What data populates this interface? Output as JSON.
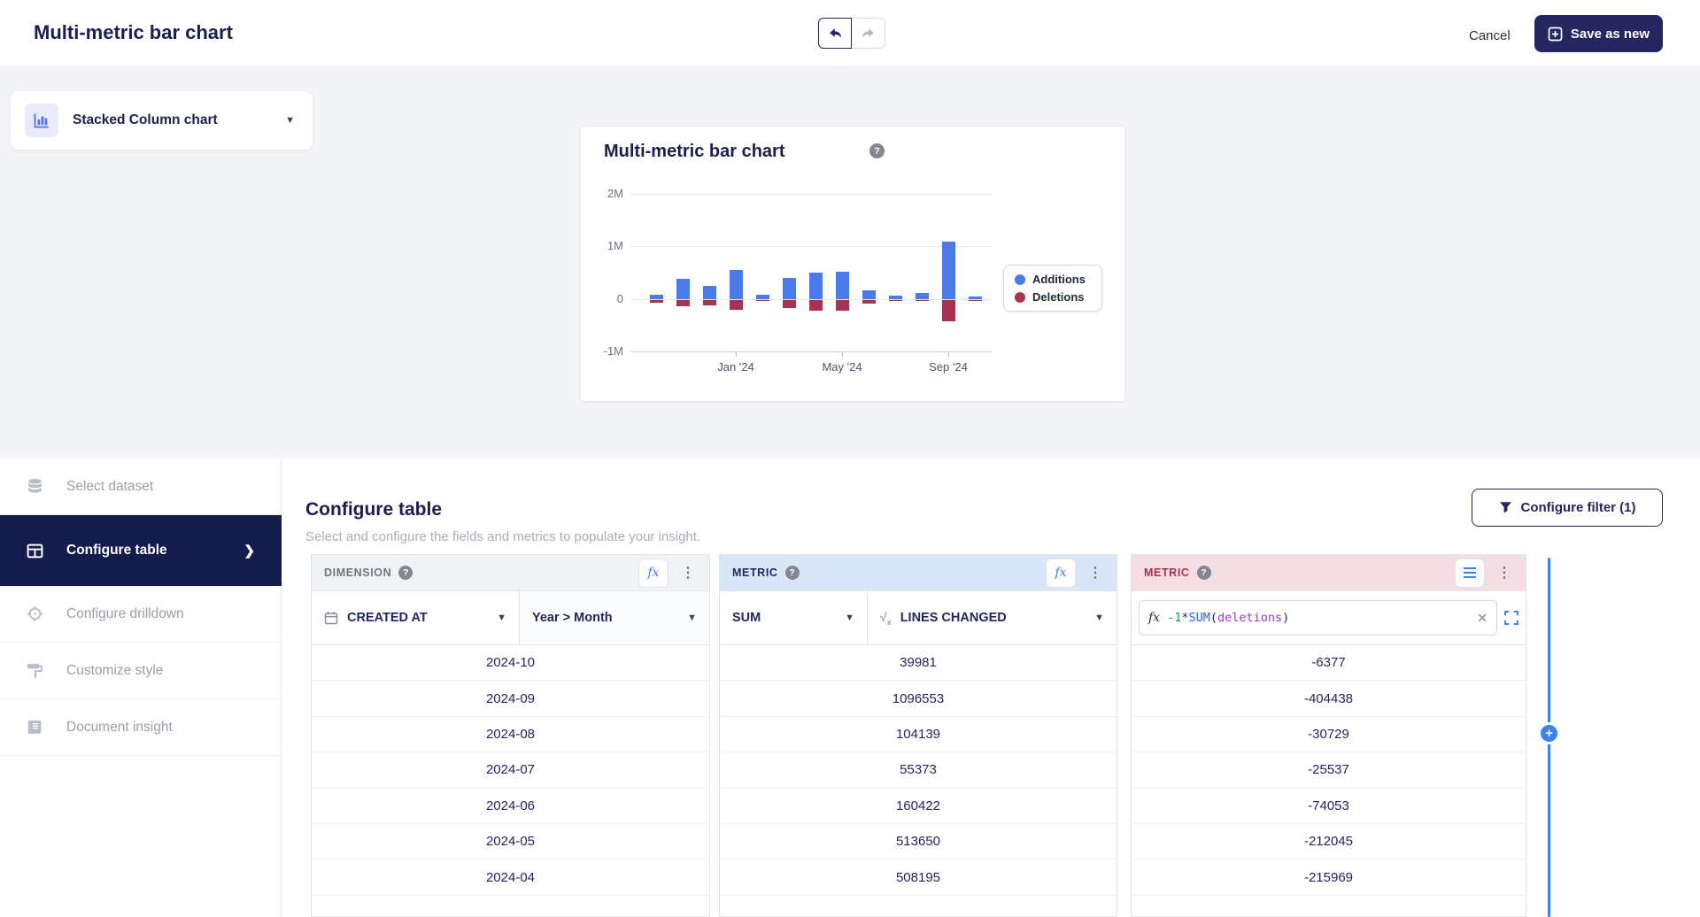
{
  "header": {
    "title": "Multi-metric bar chart",
    "cancel_label": "Cancel",
    "save_label": "Save as new"
  },
  "chart_type_selector": {
    "label": "Stacked Column chart"
  },
  "chart_card": {
    "title": "Multi-metric bar chart"
  },
  "chart_data": {
    "type": "bar",
    "stacked": true,
    "categories": [
      "2023-10",
      "2023-11",
      "2023-12",
      "2024-01",
      "2024-02",
      "2024-03",
      "2024-04",
      "2024-05",
      "2024-06",
      "2024-07",
      "2024-08",
      "2024-09",
      "2024-10"
    ],
    "series": [
      {
        "name": "Additions",
        "color": "#4b7be8",
        "values": [
          80000,
          380000,
          250000,
          550000,
          80000,
          400000,
          508195,
          513650,
          160422,
          55373,
          104139,
          1096553,
          39981
        ]
      },
      {
        "name": "Deletions",
        "color": "#a63450",
        "values": [
          -50000,
          -120000,
          -100000,
          -185000,
          -15000,
          -160000,
          -215969,
          -212045,
          -74053,
          -25537,
          -30729,
          -404438,
          -6377
        ]
      }
    ],
    "title": "Multi-metric bar chart",
    "xlabel": "",
    "ylabel": "",
    "ylim": [
      -1000000,
      2000000
    ],
    "y_ticks": [
      {
        "label": "2M",
        "value": 2000000
      },
      {
        "label": "1M",
        "value": 1000000
      },
      {
        "label": "0",
        "value": 0
      },
      {
        "label": "-1M",
        "value": -1000000
      }
    ],
    "x_tick_labels": [
      {
        "index": 3,
        "label": "Jan '24"
      },
      {
        "index": 7,
        "label": "May '24"
      },
      {
        "index": 11,
        "label": "Sep '24"
      }
    ],
    "grid": true,
    "legend_position": "right"
  },
  "sidebar": {
    "items": [
      {
        "label": "Select dataset",
        "icon": "database-icon",
        "active": false
      },
      {
        "label": "Configure table",
        "icon": "table-icon",
        "active": true
      },
      {
        "label": "Configure drilldown",
        "icon": "drilldown-icon",
        "active": false
      },
      {
        "label": "Customize style",
        "icon": "style-icon",
        "active": false
      },
      {
        "label": "Document insight",
        "icon": "document-icon",
        "active": false
      }
    ]
  },
  "configure": {
    "title": "Configure table",
    "subtitle": "Select and configure the fields and metrics to populate your insight.",
    "filter_button": "Configure filter (1)"
  },
  "columns": {
    "dimension": {
      "header": "DIMENSION",
      "field": "CREATED AT",
      "level": "Year > Month"
    },
    "metric1": {
      "header": "METRIC",
      "aggregation": "SUM",
      "field": "LINES CHANGED"
    },
    "metric2": {
      "header": "METRIC",
      "formula_prefix": "fx",
      "formula_parts": [
        {
          "text": "-1",
          "color": "#18a058"
        },
        {
          "text": "*",
          "color": "#1f2937"
        },
        {
          "text": "SUM",
          "color": "#2563eb"
        },
        {
          "text": "(",
          "color": "#1f2937"
        },
        {
          "text": "deletions",
          "color": "#a333c8"
        },
        {
          "text": ")",
          "color": "#1f2937"
        }
      ]
    }
  },
  "table": {
    "rows": [
      {
        "month": "2024-10",
        "metric1": "39981",
        "metric2": "-6377"
      },
      {
        "month": "2024-09",
        "metric1": "1096553",
        "metric2": "-404438"
      },
      {
        "month": "2024-08",
        "metric1": "104139",
        "metric2": "-30729"
      },
      {
        "month": "2024-07",
        "metric1": "55373",
        "metric2": "-25537"
      },
      {
        "month": "2024-06",
        "metric1": "160422",
        "metric2": "-74053"
      },
      {
        "month": "2024-05",
        "metric1": "513650",
        "metric2": "-212045"
      },
      {
        "month": "2024-04",
        "metric1": "508195",
        "metric2": "-215969"
      }
    ]
  }
}
